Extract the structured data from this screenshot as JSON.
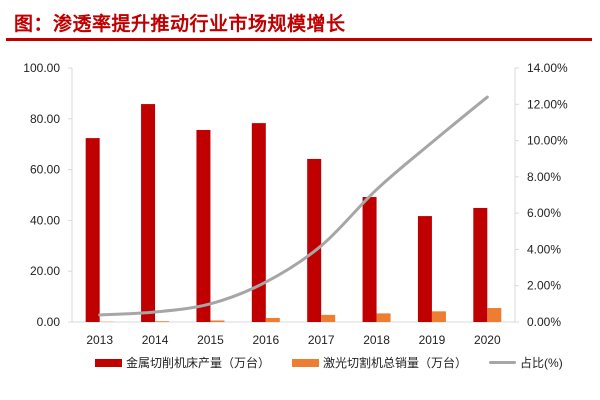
{
  "title": "图：渗透率提升推动行业市场规模增长",
  "colors": {
    "accent": "#c00000",
    "series1": "#c00000",
    "series2": "#ed7d31",
    "series3": "#a6a6a6"
  },
  "chart_data": {
    "type": "bar",
    "categories": [
      "2013",
      "2014",
      "2015",
      "2016",
      "2017",
      "2018",
      "2019",
      "2020"
    ],
    "series": [
      {
        "name": "金属切削机床产量（万台）",
        "type": "bar",
        "axis": "left",
        "values": [
          72.4,
          85.8,
          75.6,
          78.3,
          64.2,
          49.2,
          41.7,
          44.9
        ]
      },
      {
        "name": "激光切割机总销量（万台）",
        "type": "bar",
        "axis": "left",
        "values": [
          0.1,
          0.3,
          0.6,
          1.6,
          2.8,
          3.4,
          4.2,
          5.5
        ]
      },
      {
        "name": "占比(%)",
        "type": "line",
        "axis": "right",
        "values": [
          0.39,
          0.55,
          1.0,
          2.2,
          4.2,
          7.3,
          9.9,
          12.4
        ]
      }
    ],
    "ylim": [
      0,
      100
    ],
    "y_ticks": [
      "0.00",
      "20.00",
      "40.00",
      "60.00",
      "80.00",
      "100.00"
    ],
    "y2lim": [
      0,
      14
    ],
    "y2_ticks": [
      "0.00%",
      "2.00%",
      "4.00%",
      "6.00%",
      "8.00%",
      "10.00%",
      "12.00%",
      "14.00%"
    ],
    "grid": false,
    "legend_position": "bottom"
  }
}
